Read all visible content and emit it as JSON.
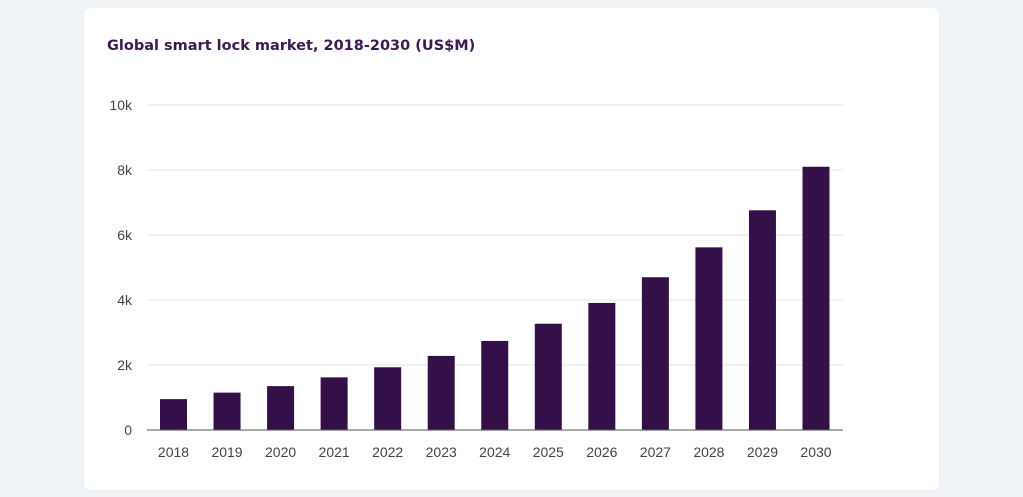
{
  "colors": {
    "page_background": "#f1f4f7",
    "card_background": "#ffffff",
    "bar": "#341048",
    "title": "#3a1a4f",
    "gridline": "#e4e4e4",
    "axis": "#555555"
  },
  "chart_data": {
    "type": "bar",
    "title": "Global smart lock market, 2018-2030 (US$M)",
    "xlabel": "",
    "ylabel": "",
    "categories": [
      "2018",
      "2019",
      "2020",
      "2021",
      "2022",
      "2023",
      "2024",
      "2025",
      "2026",
      "2027",
      "2028",
      "2029",
      "2030"
    ],
    "values": [
      950,
      1150,
      1350,
      1620,
      1930,
      2280,
      2740,
      3270,
      3910,
      4700,
      5620,
      6760,
      8100
    ],
    "ylim": [
      0,
      10000
    ],
    "yticks": [
      0,
      2000,
      4000,
      6000,
      8000,
      10000
    ],
    "ytick_labels": [
      "0",
      "2k",
      "4k",
      "6k",
      "8k",
      "10k"
    ],
    "grid": true,
    "legend": "none"
  }
}
